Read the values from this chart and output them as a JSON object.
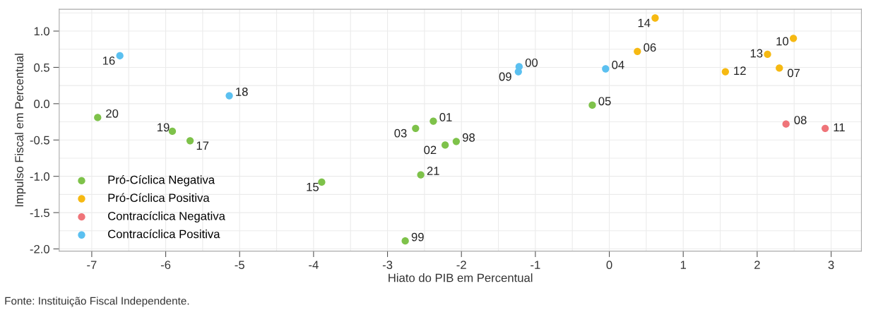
{
  "chart_data": {
    "type": "scatter",
    "xlabel": "Hiato do PIB em Percentual",
    "ylabel": "Impulso Fiscal em Percentual",
    "xlim": [
      -7.44,
      3.41
    ],
    "ylim": [
      -2.03,
      1.3
    ],
    "xticks": [
      -7,
      -6,
      -5,
      -4,
      -3,
      -2,
      -1,
      0,
      1,
      2,
      3
    ],
    "yticks": [
      {
        "value": -2,
        "label": "-2.0"
      },
      {
        "value": -1.5,
        "label": "-1.5"
      },
      {
        "value": -1,
        "label": "-1.0"
      },
      {
        "value": -0.5,
        "label": "-0.5"
      },
      {
        "value": 0,
        "label": "0.0"
      },
      {
        "value": 0.5,
        "label": "0.5"
      },
      {
        "value": 1,
        "label": "1.0"
      }
    ],
    "grid": true,
    "legend": "bottom left",
    "marker": "circle",
    "series": [
      {
        "name": "Pró-Cíclica Negativa",
        "color": "#7ec24a",
        "x": [
          -6.92,
          -5.91,
          -5.67,
          -3.89,
          -2.76,
          -2.62,
          -2.55,
          -2.38,
          -2.22,
          -2.07,
          -0.23
        ],
        "values": [
          -0.19,
          -0.38,
          -0.51,
          -1.08,
          -1.89,
          -0.34,
          -0.98,
          -0.24,
          -0.57,
          -0.52,
          -0.02
        ]
      },
      {
        "name": "Pró-Cíclica Positiva",
        "color": "#f6b912",
        "x": [
          0.38,
          0.62,
          1.57,
          2.14,
          2.49,
          2.3
        ],
        "values": [
          0.72,
          1.18,
          0.44,
          0.68,
          0.9,
          0.49
        ]
      },
      {
        "name": "Contracíclica Negativa",
        "color": "#ef7479",
        "x": [
          2.39,
          2.92
        ],
        "values": [
          -0.28,
          -0.34
        ]
      },
      {
        "name": "Contracíclica Positiva",
        "color": "#5bc0f0",
        "x": [
          -6.62,
          -5.14,
          -1.22,
          -1.23,
          -0.05
        ],
        "values": [
          0.66,
          0.11,
          0.51,
          0.44,
          0.48
        ]
      }
    ],
    "annotations": [
      {
        "text": "20",
        "x": -6.92,
        "y": -0.19
      },
      {
        "text": "19",
        "x": -5.91,
        "y": -0.38
      },
      {
        "text": "17",
        "x": -5.67,
        "y": -0.51
      },
      {
        "text": "15",
        "x": -3.89,
        "y": -1.08
      },
      {
        "text": "99",
        "x": -2.76,
        "y": -1.89
      },
      {
        "text": "03",
        "x": -2.62,
        "y": -0.34
      },
      {
        "text": "21",
        "x": -2.55,
        "y": -0.98
      },
      {
        "text": "01",
        "x": -2.38,
        "y": -0.24
      },
      {
        "text": "02",
        "x": -2.22,
        "y": -0.57
      },
      {
        "text": "98",
        "x": -2.07,
        "y": -0.52
      },
      {
        "text": "05",
        "x": -0.23,
        "y": -0.02
      },
      {
        "text": "06",
        "x": 0.38,
        "y": 0.72
      },
      {
        "text": "14",
        "x": 0.62,
        "y": 1.18
      },
      {
        "text": "12",
        "x": 1.57,
        "y": 0.44
      },
      {
        "text": "13",
        "x": 2.14,
        "y": 0.68
      },
      {
        "text": "10",
        "x": 2.49,
        "y": 0.9
      },
      {
        "text": "07",
        "x": 2.3,
        "y": 0.49
      },
      {
        "text": "08",
        "x": 2.39,
        "y": -0.28
      },
      {
        "text": "11",
        "x": 2.92,
        "y": -0.34
      },
      {
        "text": "16",
        "x": -6.62,
        "y": 0.66
      },
      {
        "text": "18",
        "x": -5.14,
        "y": 0.11
      },
      {
        "text": "00",
        "x": -1.22,
        "y": 0.51
      },
      {
        "text": "09",
        "x": -1.23,
        "y": 0.44
      },
      {
        "text": "04",
        "x": -0.05,
        "y": 0.48
      },
      "Fonte: Instituição Fiscal Independente."
    ]
  }
}
